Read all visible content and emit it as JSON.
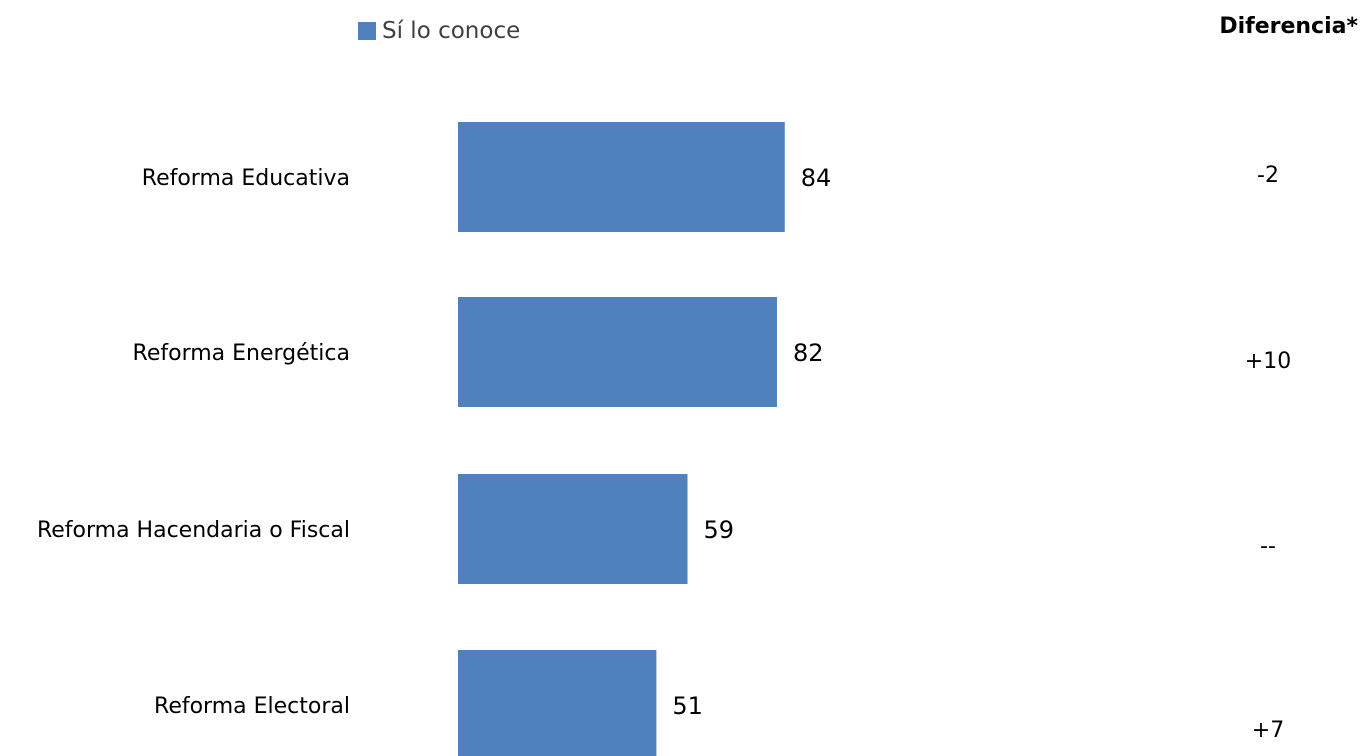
{
  "chart_data": {
    "type": "bar",
    "orientation": "horizontal",
    "categories": [
      "Reforma Educativa",
      "Reforma Energética",
      "Reforma Hacendaria o Fiscal",
      "Reforma Electoral"
    ],
    "series": [
      {
        "name": "Sí lo conoce",
        "values": [
          84,
          82,
          59,
          51
        ],
        "color": "#4F81BD"
      }
    ],
    "data_labels": [
      "84",
      "82",
      "59",
      "51"
    ],
    "difference": {
      "header": "Diferencia*",
      "values": [
        "-2",
        "+10",
        "--",
        "+7"
      ]
    },
    "legend_position": "top-left",
    "grid": false
  }
}
